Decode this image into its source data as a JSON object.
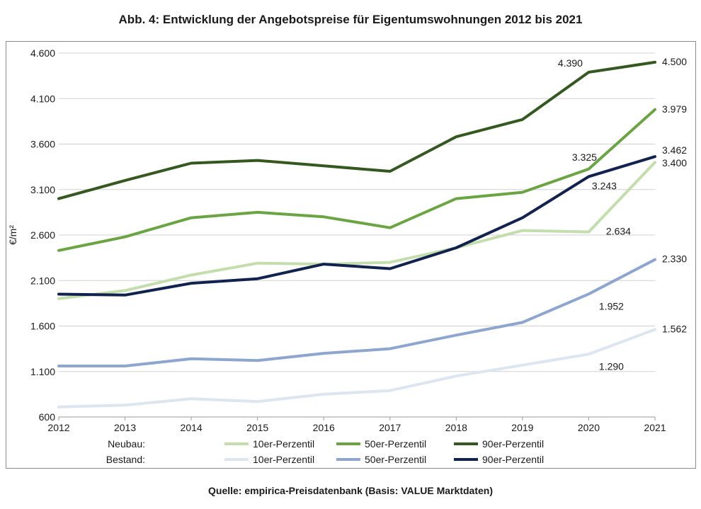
{
  "chart_data": {
    "type": "line",
    "title": "Abb. 4: Entwicklung der Angebotspreise für Eigentumswohnungen 2012 bis 2021",
    "ylabel": "€/m²",
    "xlabel": "",
    "ylim": [
      600,
      4600
    ],
    "yticks": [
      "600",
      "1.100",
      "1.600",
      "2.100",
      "2.600",
      "3.100",
      "3.600",
      "4.100",
      "4.600"
    ],
    "x": [
      "2012",
      "2013",
      "2014",
      "2015",
      "2016",
      "2017",
      "2018",
      "2019",
      "2020",
      "2021"
    ],
    "legend_groups": [
      {
        "label": "Neubau:",
        "series": [
          0,
          1,
          2
        ]
      },
      {
        "label": "Bestand:",
        "series": [
          3,
          4,
          5
        ]
      }
    ],
    "series": [
      {
        "name": "10er-Perzentil",
        "group": "Neubau",
        "color": "#c3deac",
        "values": [
          1900,
          1990,
          2160,
          2290,
          2280,
          2300,
          2460,
          2650,
          2634,
          3400
        ]
      },
      {
        "name": "50er-Perzentil",
        "group": "Neubau",
        "color": "#6aa443",
        "values": [
          2430,
          2580,
          2790,
          2850,
          2800,
          2680,
          3000,
          3070,
          3325,
          3979
        ]
      },
      {
        "name": "90er-Perzentil",
        "group": "Neubau",
        "color": "#355821",
        "values": [
          3000,
          3200,
          3390,
          3420,
          3360,
          3300,
          3680,
          3870,
          4390,
          4500
        ]
      },
      {
        "name": "10er-Perzentil",
        "group": "Bestand",
        "color": "#dde5f1",
        "values": [
          710,
          730,
          800,
          770,
          850,
          890,
          1050,
          1170,
          1290,
          1562
        ]
      },
      {
        "name": "50er-Perzentil",
        "group": "Bestand",
        "color": "#8da5cf",
        "values": [
          1160,
          1160,
          1240,
          1220,
          1300,
          1350,
          1500,
          1640,
          1952,
          2330
        ]
      },
      {
        "name": "90er-Perzentil",
        "group": "Bestand",
        "color": "#12224f",
        "values": [
          1950,
          1940,
          2070,
          2120,
          2280,
          2230,
          2460,
          2790,
          3243,
          3462
        ]
      }
    ],
    "annotations": [
      {
        "text": "4.390",
        "series": 2,
        "index": 8
      },
      {
        "text": "4.500",
        "series": 2,
        "index": 9
      },
      {
        "text": "3.979",
        "series": 1,
        "index": 9
      },
      {
        "text": "3.325",
        "series": 1,
        "index": 8
      },
      {
        "text": "3.462",
        "series": 5,
        "index": 9
      },
      {
        "text": "3.400",
        "series": 0,
        "index": 9
      },
      {
        "text": "3.243",
        "series": 5,
        "index": 8
      },
      {
        "text": "2.634",
        "series": 0,
        "index": 8
      },
      {
        "text": "2.330",
        "series": 4,
        "index": 9
      },
      {
        "text": "1.952",
        "series": 4,
        "index": 8
      },
      {
        "text": "1.562",
        "series": 3,
        "index": 9
      },
      {
        "text": "1.290",
        "series": 3,
        "index": 8
      }
    ],
    "grid": true,
    "legend_position": "bottom"
  },
  "source": "Quelle: empirica-Preisdatenbank (Basis: VALUE Marktdaten)"
}
